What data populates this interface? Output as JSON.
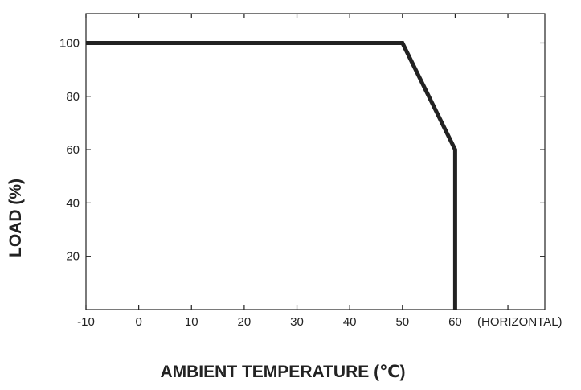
{
  "chart_data": {
    "type": "line",
    "title": "",
    "xlabel": "AMBIENT TEMPERATURE (℃)",
    "ylabel": "LOAD (%)",
    "x_extra_label": "(HORIZONTAL)",
    "xlim": [
      -10,
      77
    ],
    "ylim": [
      0,
      111
    ],
    "x_ticks": [
      -10,
      0,
      10,
      20,
      30,
      40,
      50,
      60,
      70
    ],
    "x_tick_labels": [
      "-10",
      "0",
      "10",
      "20",
      "30",
      "40",
      "50",
      "60",
      ""
    ],
    "y_ticks": [
      20,
      40,
      60,
      80,
      100
    ],
    "y_tick_labels": [
      "20",
      "40",
      "60",
      "80",
      "100"
    ],
    "grid": false,
    "series": [
      {
        "x": [
          -10,
          50,
          60,
          60
        ],
        "y": [
          100,
          100,
          60,
          0
        ]
      }
    ],
    "colors": {
      "line": "#222222",
      "axis": "#222222",
      "background": "#ffffff"
    }
  }
}
